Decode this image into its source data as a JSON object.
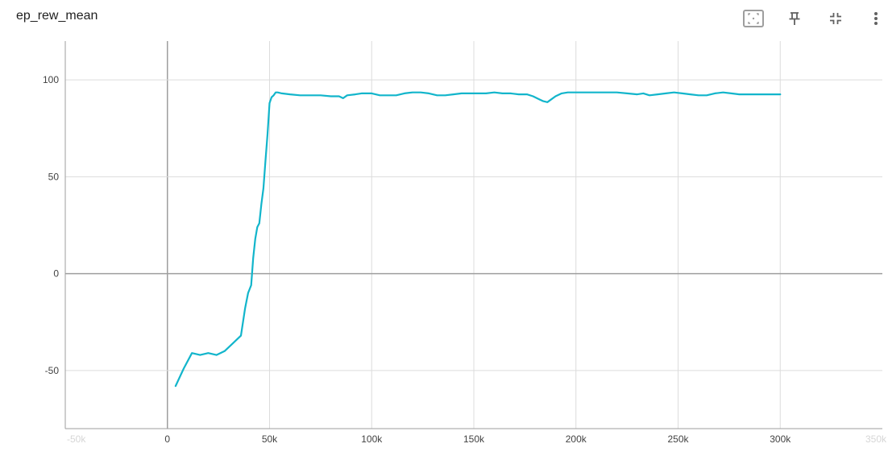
{
  "card": {
    "title": "ep_rew_mean",
    "toolbar": [
      {
        "name": "fit-domain-icon",
        "label": "Fit domain to data"
      },
      {
        "name": "pin-icon",
        "label": "Pin card"
      },
      {
        "name": "collapse-icon",
        "label": "Exit full size"
      },
      {
        "name": "more-vert-icon",
        "label": "More options"
      }
    ]
  },
  "colors": {
    "series": "#12b5cb",
    "grid": "#dcdcdc",
    "zero_line": "#9e9e9e"
  },
  "chart_data": {
    "type": "line",
    "title": "",
    "xlabel": "",
    "ylabel": "",
    "xlim": [
      -50000,
      350000
    ],
    "ylim": [
      -80,
      120
    ],
    "grid": true,
    "x_ticks": [
      {
        "value": -50000,
        "label": "-50k",
        "faded": true
      },
      {
        "value": 0,
        "label": "0"
      },
      {
        "value": 50000,
        "label": "50k"
      },
      {
        "value": 100000,
        "label": "100k"
      },
      {
        "value": 150000,
        "label": "150k"
      },
      {
        "value": 200000,
        "label": "200k"
      },
      {
        "value": 250000,
        "label": "250k"
      },
      {
        "value": 300000,
        "label": "300k"
      },
      {
        "value": 350000,
        "label": "350k",
        "faded": true
      }
    ],
    "y_ticks": [
      {
        "value": -50,
        "label": "-50"
      },
      {
        "value": 0,
        "label": "0"
      },
      {
        "value": 50,
        "label": "50"
      },
      {
        "value": 100,
        "label": "100"
      }
    ],
    "series": [
      {
        "x": [
          4000,
          8000,
          12000,
          16000,
          20000,
          24000,
          28000,
          32000,
          36000,
          38000,
          39500,
          41000,
          42000,
          43000,
          44000,
          45000,
          46000,
          47000,
          48000,
          49000,
          50000,
          51000,
          52000,
          53000,
          54000,
          56000,
          60000,
          65000,
          70000,
          75000,
          80000,
          84000,
          86000,
          88000,
          92000,
          95000,
          100000,
          104000,
          108000,
          112000,
          116000,
          120000,
          124000,
          128000,
          132000,
          136000,
          140000,
          144000,
          148000,
          152000,
          156000,
          160000,
          164000,
          168000,
          172000,
          176000,
          179000,
          182000,
          184000,
          186000,
          188000,
          190000,
          193000,
          196000,
          200000,
          205000,
          210000,
          215000,
          220000,
          225000,
          230000,
          233000,
          236000,
          240000,
          244000,
          248000,
          252000,
          256000,
          260000,
          264000,
          268000,
          272000,
          276000,
          280000,
          284000,
          288000,
          292000,
          296000,
          300000
        ],
        "y": [
          -58,
          -49,
          -41,
          -42,
          -41,
          -42,
          -40,
          -36,
          -32,
          -18,
          -10,
          -6,
          8,
          18,
          24,
          26,
          36,
          44,
          58,
          72,
          88,
          91,
          92,
          93.5,
          93.5,
          93,
          92.5,
          92,
          92,
          92,
          91.5,
          91.5,
          90.5,
          92,
          92.5,
          93,
          93,
          92,
          92,
          92,
          93,
          93.5,
          93.5,
          93,
          92,
          92,
          92.5,
          93,
          93,
          93,
          93,
          93.5,
          93,
          93,
          92.5,
          92.5,
          91.5,
          90,
          89,
          88.5,
          90,
          91.5,
          93,
          93.5,
          93.5,
          93.5,
          93.5,
          93.5,
          93.5,
          93,
          92.5,
          93,
          92,
          92.5,
          93,
          93.5,
          93,
          92.5,
          92,
          92,
          93,
          93.5,
          93,
          92.5,
          92.5,
          92.5,
          92.5,
          92.5,
          92.5
        ]
      }
    ]
  }
}
